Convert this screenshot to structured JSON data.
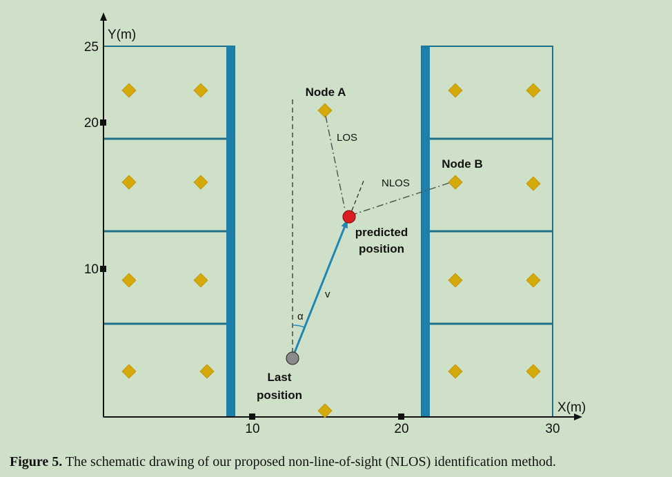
{
  "axes": {
    "x_label": "X(m)",
    "y_label": "Y(m)",
    "x_ticks": [
      "10",
      "20",
      "30"
    ],
    "y_ticks": [
      "25",
      "20",
      "10"
    ]
  },
  "labels": {
    "node_a": "Node A",
    "node_b": "Node B",
    "los": "LOS",
    "nlos": "NLOS",
    "predicted_line1": "predicted",
    "predicted_line2": "position",
    "last_line1": "Last",
    "last_line2": "position",
    "velocity": "v",
    "angle": "α"
  },
  "caption": {
    "label": "Figure 5.",
    "text": " The schematic drawing of our proposed non-line-of-sight (NLOS) identification method."
  },
  "colors": {
    "background": "#cfe0c8",
    "wall": "#1f7fa8",
    "room_line": "#1d6f8c",
    "node": "#d4a90a",
    "predicted": "#d81e1e",
    "last": "#8a8a8a",
    "arrow": "#1f86b4"
  }
}
